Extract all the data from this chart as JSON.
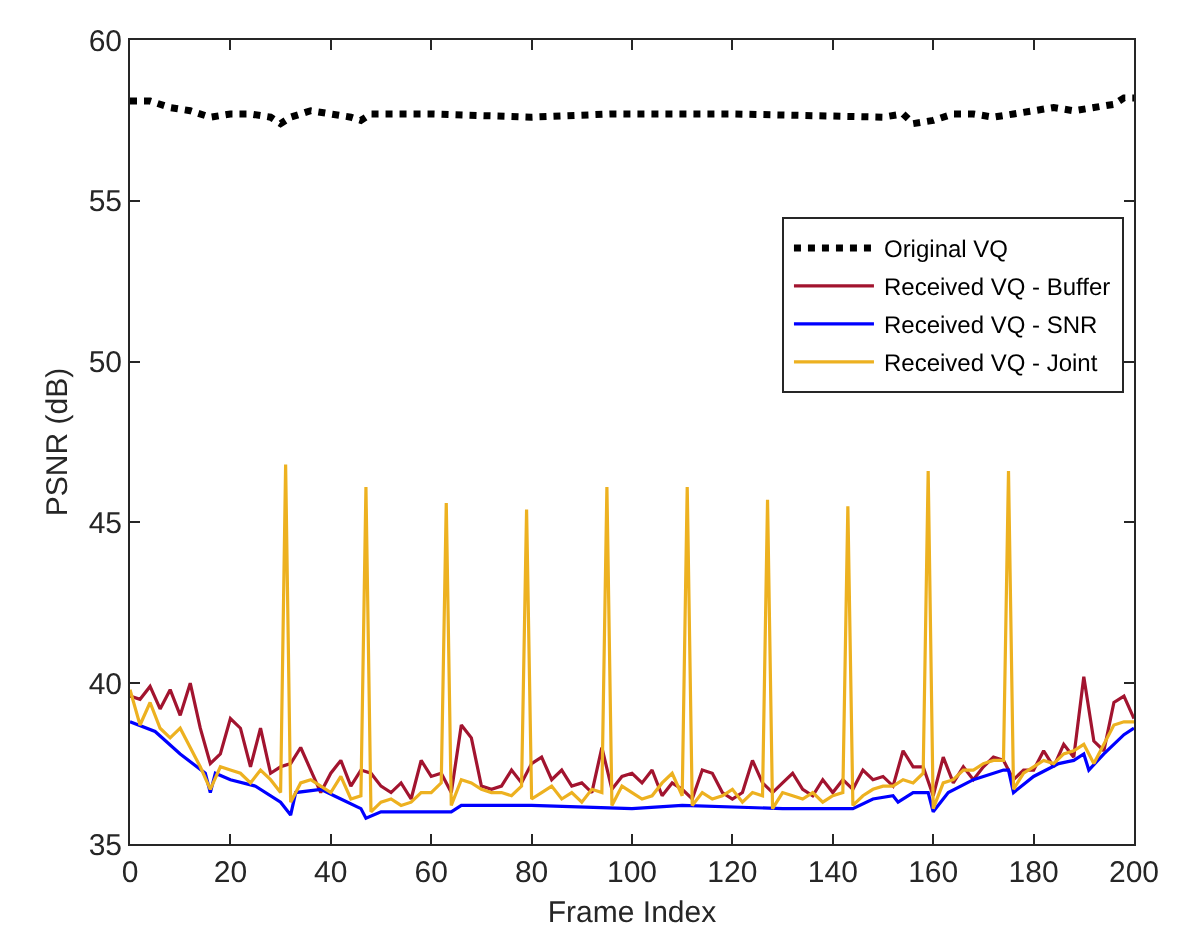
{
  "chart_data": {
    "type": "line",
    "xlabel": "Frame Index",
    "ylabel": "PSNR (dB)",
    "xlim": [
      0,
      200
    ],
    "ylim": [
      35,
      60
    ],
    "xticks": [
      0,
      20,
      40,
      60,
      80,
      100,
      120,
      140,
      160,
      180,
      200
    ],
    "yticks": [
      35,
      40,
      45,
      50,
      55,
      60
    ],
    "grid": false,
    "legend": "top right",
    "marker": "none",
    "series": [
      {
        "name": "Original VQ",
        "color": "#000000",
        "line_style": "dotted",
        "x": [
          0,
          4,
          8,
          12,
          16,
          20,
          24,
          28,
          30,
          32,
          36,
          40,
          44,
          46,
          48,
          60,
          80,
          96,
          120,
          150,
          154,
          156,
          160,
          164,
          168,
          172,
          176,
          180,
          184,
          188,
          192,
          196,
          198,
          200
        ],
        "values": [
          58.1,
          58.1,
          57.9,
          57.8,
          57.6,
          57.7,
          57.7,
          57.6,
          57.4,
          57.6,
          57.8,
          57.7,
          57.6,
          57.5,
          57.7,
          57.7,
          57.6,
          57.7,
          57.7,
          57.6,
          57.7,
          57.4,
          57.5,
          57.7,
          57.7,
          57.6,
          57.7,
          57.8,
          57.9,
          57.8,
          57.9,
          58.0,
          58.2,
          58.2
        ]
      },
      {
        "name": "Received VQ - Buffer",
        "color": "#a2142f",
        "line_style": "solid",
        "x": [
          0,
          2,
          4,
          6,
          8,
          10,
          12,
          14,
          16,
          18,
          20,
          22,
          24,
          26,
          28,
          30,
          32,
          34,
          36,
          38,
          40,
          42,
          44,
          46,
          48,
          50,
          52,
          54,
          56,
          58,
          60,
          62,
          64,
          66,
          68,
          70,
          72,
          74,
          76,
          78,
          80,
          82,
          84,
          86,
          88,
          90,
          92,
          94,
          96,
          98,
          100,
          102,
          104,
          106,
          108,
          110,
          112,
          114,
          116,
          118,
          120,
          122,
          124,
          126,
          128,
          130,
          132,
          134,
          136,
          138,
          140,
          142,
          144,
          146,
          148,
          150,
          152,
          154,
          156,
          158,
          160,
          162,
          164,
          166,
          168,
          170,
          172,
          174,
          176,
          178,
          180,
          182,
          184,
          186,
          188,
          190,
          192,
          194,
          196,
          198,
          200
        ],
        "values": [
          39.6,
          39.5,
          39.9,
          39.2,
          39.8,
          39.0,
          40.0,
          38.6,
          37.5,
          37.8,
          38.9,
          38.6,
          37.4,
          38.6,
          37.2,
          37.4,
          37.5,
          38.0,
          37.3,
          36.6,
          37.2,
          37.6,
          36.8,
          37.3,
          37.2,
          36.8,
          36.6,
          36.9,
          36.4,
          37.6,
          37.1,
          37.2,
          36.6,
          38.7,
          38.3,
          36.8,
          36.7,
          36.8,
          37.3,
          36.9,
          37.5,
          37.7,
          37.0,
          37.3,
          36.8,
          36.9,
          36.6,
          38.0,
          36.7,
          37.1,
          37.2,
          36.9,
          37.3,
          36.5,
          36.9,
          36.7,
          36.4,
          37.3,
          37.2,
          36.6,
          36.4,
          36.6,
          37.6,
          36.9,
          36.6,
          36.9,
          37.2,
          36.7,
          36.5,
          37.0,
          36.6,
          37.0,
          36.7,
          37.3,
          37.0,
          37.1,
          36.8,
          37.9,
          37.4,
          37.4,
          36.5,
          37.7,
          36.9,
          37.4,
          37.0,
          37.4,
          37.7,
          37.6,
          37.0,
          37.3,
          37.3,
          37.9,
          37.4,
          38.1,
          37.7,
          40.2,
          38.2,
          37.9,
          39.4,
          39.6,
          38.9
        ]
      },
      {
        "name": "Received VQ - SNR",
        "color": "#0000ff",
        "line_style": "solid",
        "x": [
          0,
          5,
          10,
          15,
          16,
          17,
          20,
          25,
          30,
          32,
          33,
          38,
          42,
          46,
          47,
          50,
          60,
          64,
          66,
          80,
          100,
          110,
          130,
          144,
          148,
          152,
          153,
          156,
          159,
          160,
          163,
          168,
          174,
          175,
          176,
          180,
          185,
          188,
          190,
          191,
          194,
          198,
          200
        ],
        "values": [
          38.8,
          38.5,
          37.8,
          37.2,
          36.6,
          37.2,
          37.0,
          36.8,
          36.3,
          35.9,
          36.6,
          36.7,
          36.4,
          36.1,
          35.8,
          36.0,
          36.0,
          36.0,
          36.2,
          36.2,
          36.1,
          36.2,
          36.1,
          36.1,
          36.4,
          36.5,
          36.3,
          36.6,
          36.6,
          36.0,
          36.6,
          37.0,
          37.3,
          37.3,
          36.6,
          37.1,
          37.5,
          37.6,
          37.8,
          37.3,
          37.8,
          38.4,
          38.6
        ]
      },
      {
        "name": "Received VQ - Joint",
        "color": "#edb120",
        "line_style": "solid",
        "x": [
          0,
          2,
          4,
          6,
          8,
          10,
          12,
          14,
          16,
          18,
          20,
          22,
          24,
          26,
          28,
          30,
          31,
          32,
          34,
          36,
          38,
          40,
          42,
          44,
          46,
          47,
          48,
          50,
          52,
          54,
          56,
          58,
          60,
          62,
          63,
          64,
          66,
          68,
          70,
          72,
          74,
          76,
          78,
          79,
          80,
          82,
          84,
          86,
          88,
          90,
          92,
          94,
          95,
          96,
          98,
          100,
          102,
          104,
          106,
          108,
          110,
          111,
          112,
          114,
          116,
          118,
          120,
          122,
          124,
          126,
          127,
          128,
          130,
          132,
          134,
          136,
          138,
          140,
          142,
          143,
          144,
          146,
          148,
          150,
          152,
          154,
          156,
          158,
          159,
          160,
          162,
          164,
          166,
          168,
          170,
          172,
          174,
          175,
          176,
          178,
          180,
          182,
          184,
          186,
          188,
          190,
          192,
          194,
          196,
          198,
          200
        ],
        "values": [
          39.8,
          38.7,
          39.4,
          38.6,
          38.3,
          38.6,
          38.0,
          37.4,
          36.7,
          37.4,
          37.3,
          37.2,
          36.9,
          37.3,
          37.0,
          36.6,
          46.8,
          36.3,
          36.9,
          37.0,
          36.8,
          36.6,
          37.1,
          36.4,
          36.5,
          46.1,
          36.0,
          36.3,
          36.4,
          36.2,
          36.3,
          36.6,
          36.6,
          36.9,
          45.6,
          36.2,
          37.0,
          36.9,
          36.7,
          36.6,
          36.6,
          36.5,
          36.8,
          45.4,
          36.4,
          36.6,
          36.8,
          36.4,
          36.6,
          36.3,
          36.7,
          36.6,
          46.1,
          36.2,
          36.8,
          36.6,
          36.4,
          36.5,
          36.9,
          37.2,
          36.5,
          46.1,
          36.2,
          36.6,
          36.4,
          36.5,
          36.7,
          36.3,
          36.6,
          36.5,
          45.7,
          36.1,
          36.6,
          36.5,
          36.4,
          36.6,
          36.3,
          36.5,
          36.6,
          45.5,
          36.2,
          36.5,
          36.7,
          36.8,
          36.8,
          37.0,
          36.9,
          37.2,
          46.6,
          36.1,
          36.9,
          37.0,
          37.3,
          37.3,
          37.5,
          37.6,
          37.6,
          46.6,
          36.7,
          37.2,
          37.4,
          37.6,
          37.5,
          37.8,
          37.9,
          38.1,
          37.5,
          38.1,
          38.7,
          38.8,
          38.8
        ]
      }
    ]
  }
}
